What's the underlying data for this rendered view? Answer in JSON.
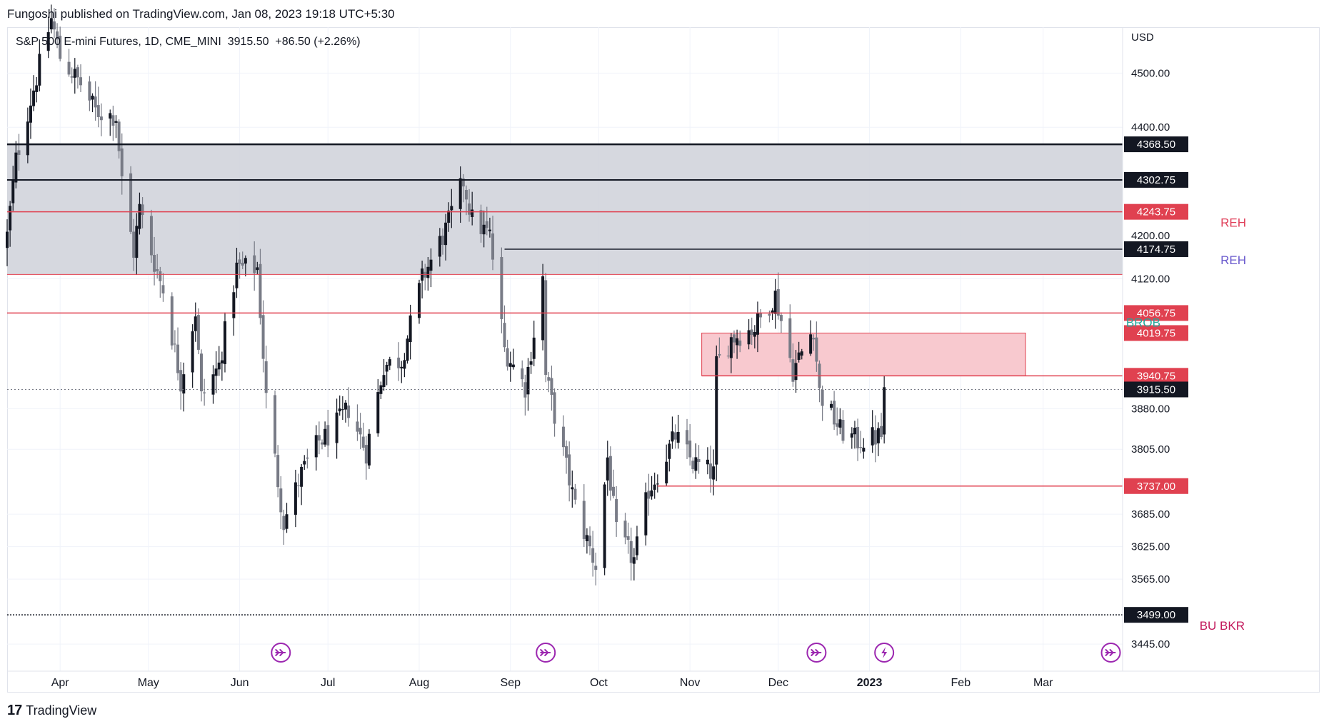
{
  "header": {
    "publish_line": "Fungoshi published on TradingView.com, Jan 08, 2023 19:18 UTC+5:30"
  },
  "symbol": {
    "name": "S&P 500 E-mini Futures, 1D, CME_MINI",
    "last": "3915.50",
    "change": "+86.50 (+2.26%)"
  },
  "footer": {
    "brand": "TradingView",
    "logo": "17"
  },
  "colors": {
    "zone_gray": "#d1d4dc",
    "zone_pink": "#f8c9cf",
    "red_line": "#e04150",
    "black_line": "#131722",
    "candle_up": "#131722",
    "candle_down": "#787b86",
    "reh_red": "#e0405a",
    "reh_purple": "#6a5acd",
    "brob_teal": "#26a69a",
    "bubkr_pink": "#c2185b",
    "event_purple": "#9c27b0"
  },
  "chart_data": {
    "type": "candlestick",
    "currency": "USD",
    "ylim": [
      3395,
      4585
    ],
    "y_ticks": [
      "4500.00",
      "4400.00",
      "4200.00",
      "4120.00",
      "3880.00",
      "3805.00",
      "3685.00",
      "3625.00",
      "3565.00",
      "3445.00"
    ],
    "x_ticks": [
      {
        "label": "Apr",
        "date": "2022-04-01"
      },
      {
        "label": "May",
        "date": "2022-05-01"
      },
      {
        "label": "Jun",
        "date": "2022-06-01"
      },
      {
        "label": "Jul",
        "date": "2022-07-01"
      },
      {
        "label": "Aug",
        "date": "2022-08-01"
      },
      {
        "label": "Sep",
        "date": "2022-09-01"
      },
      {
        "label": "Oct",
        "date": "2022-10-01"
      },
      {
        "label": "Nov",
        "date": "2022-11-01"
      },
      {
        "label": "Dec",
        "date": "2022-12-01"
      },
      {
        "label": "2023",
        "date": "2023-01-01",
        "bold": true
      },
      {
        "label": "Feb",
        "date": "2023-02-01"
      },
      {
        "label": "Mar",
        "date": "2023-03-01"
      }
    ],
    "x_range": [
      "2022-03-14",
      "2023-03-28"
    ],
    "price_labels": [
      {
        "value": 4368.5,
        "text": "4368.50",
        "style": "black"
      },
      {
        "value": 4302.75,
        "text": "4302.75",
        "style": "black"
      },
      {
        "value": 4243.75,
        "text": "4243.75",
        "style": "red"
      },
      {
        "value": 4174.75,
        "text": "4174.75",
        "style": "black"
      },
      {
        "value": 4056.75,
        "text": "4056.75",
        "style": "red"
      },
      {
        "value": 4019.75,
        "text": "4019.75",
        "style": "red"
      },
      {
        "value": 3940.75,
        "text": "3940.75",
        "style": "red"
      },
      {
        "value": 3915.5,
        "text": "3915.50",
        "style": "black"
      },
      {
        "value": 3737.0,
        "text": "3737.00",
        "style": "red"
      },
      {
        "value": 3499.0,
        "text": "3499.00",
        "style": "black"
      }
    ],
    "zones": [
      {
        "from_date": "2022-03-14",
        "to_date": "2023-03-28",
        "top": 4368.5,
        "bottom": 4128,
        "fill": "gray"
      },
      {
        "from_date": "2022-11-05",
        "to_date": "2023-02-23",
        "top": 4019.75,
        "bottom": 3940.75,
        "fill": "pink"
      }
    ],
    "lines": [
      {
        "value": 4368.5,
        "from_date": "2022-03-14",
        "color": "black",
        "width": 2.5,
        "style": "solid"
      },
      {
        "value": 4302.75,
        "from_date": "2022-03-14",
        "color": "black",
        "width": 2,
        "style": "solid"
      },
      {
        "value": 4243.75,
        "from_date": "2022-03-14",
        "color": "red",
        "width": 1.5,
        "style": "solid"
      },
      {
        "value": 4174.75,
        "from_date": "2022-08-30",
        "color": "gray",
        "width": 2,
        "style": "solid"
      },
      {
        "value": 4128,
        "from_date": "2022-03-14",
        "color": "red",
        "width": 1,
        "style": "solid"
      },
      {
        "value": 4056.75,
        "from_date": "2022-03-14",
        "color": "red",
        "width": 1.5,
        "style": "solid"
      },
      {
        "value": 3940.75,
        "from_date": "2022-11-05",
        "color": "red",
        "width": 1.5,
        "style": "solid"
      },
      {
        "value": 3915.5,
        "from_date": "2022-03-14",
        "color": "gray",
        "width": 1,
        "style": "dotted"
      },
      {
        "value": 3737.0,
        "from_date": "2022-10-21",
        "color": "red",
        "width": 1.5,
        "style": "solid"
      },
      {
        "value": 3499.0,
        "from_date": "2022-03-14",
        "color": "black",
        "width": 1.5,
        "style": "dotted"
      }
    ],
    "annotations": [
      {
        "text": "REH",
        "value": 4243.75,
        "color": "reh_red"
      },
      {
        "text": "REH",
        "value": 4174.75,
        "color": "reh_purple"
      },
      {
        "text": "BROB",
        "value": 4019.75,
        "color": "brob_teal"
      },
      {
        "text": "BU BKR",
        "value": 3499.0,
        "color": "bubkr_pink"
      }
    ],
    "events": [
      {
        "date": "2022-06-15",
        "icon": "arrow-circle-icon"
      },
      {
        "date": "2022-09-13",
        "icon": "arrow-circle-icon"
      },
      {
        "date": "2022-12-14",
        "icon": "arrow-circle-icon"
      },
      {
        "date": "2023-01-06",
        "icon": "lightning-circle-icon"
      },
      {
        "date": "2023-03-24",
        "icon": "arrow-circle-icon"
      }
    ],
    "anchors": [
      [
        "2022-03-14",
        4200
      ],
      [
        "2022-03-17",
        4340
      ],
      [
        "2022-03-22",
        4450
      ],
      [
        "2022-03-29",
        4600
      ],
      [
        "2022-04-01",
        4530
      ],
      [
        "2022-04-08",
        4480
      ],
      [
        "2022-04-13",
        4430
      ],
      [
        "2022-04-20",
        4420
      ],
      [
        "2022-04-22",
        4300
      ],
      [
        "2022-04-26",
        4170
      ],
      [
        "2022-04-28",
        4250
      ],
      [
        "2022-05-03",
        4150
      ],
      [
        "2022-05-06",
        4100
      ],
      [
        "2022-05-12",
        3930
      ],
      [
        "2022-05-17",
        4060
      ],
      [
        "2022-05-19",
        3900
      ],
      [
        "2022-05-25",
        3960
      ],
      [
        "2022-05-31",
        4140
      ],
      [
        "2022-06-07",
        4140
      ],
      [
        "2022-06-10",
        3900
      ],
      [
        "2022-06-16",
        3670
      ],
      [
        "2022-06-22",
        3760
      ],
      [
        "2022-06-28",
        3820
      ],
      [
        "2022-07-01",
        3830
      ],
      [
        "2022-07-08",
        3880
      ],
      [
        "2022-07-14",
        3800
      ],
      [
        "2022-07-20",
        3960
      ],
      [
        "2022-07-26",
        3970
      ],
      [
        "2022-08-02",
        4120
      ],
      [
        "2022-08-10",
        4210
      ],
      [
        "2022-08-16",
        4300
      ],
      [
        "2022-08-19",
        4230
      ],
      [
        "2022-08-25",
        4200
      ],
      [
        "2022-08-30",
        3990
      ],
      [
        "2022-09-06",
        3920
      ],
      [
        "2022-09-12",
        4120
      ],
      [
        "2022-09-13",
        3940
      ],
      [
        "2022-09-23",
        3700
      ],
      [
        "2022-09-30",
        3590
      ],
      [
        "2022-10-04",
        3790
      ],
      [
        "2022-10-07",
        3650
      ],
      [
        "2022-10-13",
        3600
      ],
      [
        "2022-10-18",
        3730
      ],
      [
        "2022-10-21",
        3760
      ],
      [
        "2022-10-27",
        3830
      ],
      [
        "2022-11-02",
        3780
      ],
      [
        "2022-11-09",
        3760
      ],
      [
        "2022-11-10",
        3960
      ],
      [
        "2022-11-15",
        4010
      ],
      [
        "2022-11-23",
        4030
      ],
      [
        "2022-11-30",
        4090
      ],
      [
        "2022-12-06",
        3950
      ],
      [
        "2022-12-13",
        4030
      ],
      [
        "2022-12-15",
        3910
      ],
      [
        "2022-12-22",
        3840
      ],
      [
        "2022-12-28",
        3820
      ],
      [
        "2023-01-05",
        3830
      ],
      [
        "2023-01-06",
        3915.5
      ]
    ],
    "first_candle": "2022-03-14",
    "last_candle": "2023-01-06"
  }
}
